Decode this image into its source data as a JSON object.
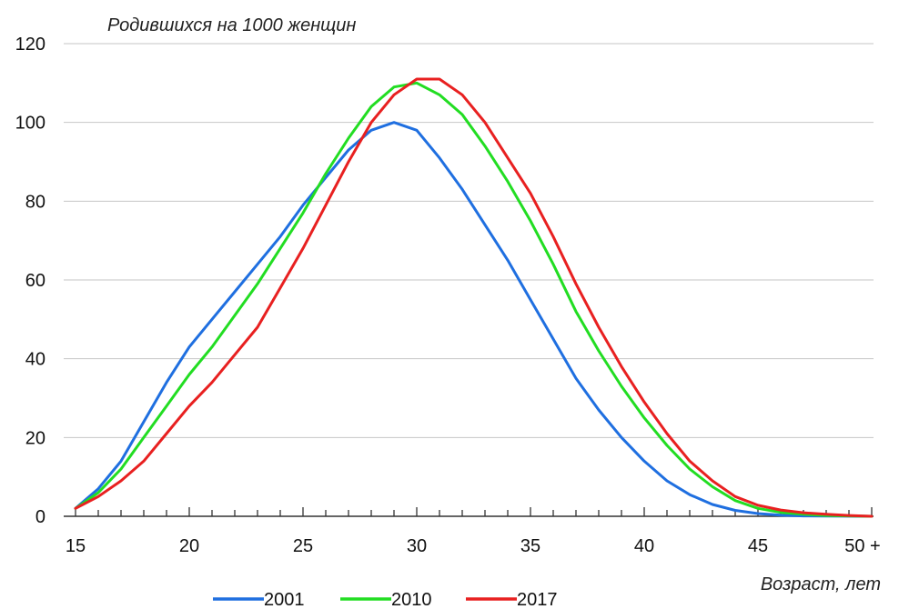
{
  "chart_data": {
    "type": "line",
    "ylabel": "Родившихся на 1000 женщин",
    "xlabel": "Возраст, лет",
    "xlim": [
      15,
      50
    ],
    "ylim": [
      0,
      120
    ],
    "grid": true,
    "legend_position": "bottom",
    "x_ticks": [
      {
        "value": 15,
        "label": "15"
      },
      {
        "value": 20,
        "label": "20"
      },
      {
        "value": 25,
        "label": "25"
      },
      {
        "value": 30,
        "label": "30"
      },
      {
        "value": 35,
        "label": "35"
      },
      {
        "value": 40,
        "label": "40"
      },
      {
        "value": 45,
        "label": "45"
      },
      {
        "value": 50,
        "label": "50 +"
      }
    ],
    "y_ticks": [
      0,
      20,
      40,
      60,
      80,
      100,
      120
    ],
    "x": [
      15,
      16,
      17,
      18,
      19,
      20,
      21,
      22,
      23,
      24,
      25,
      26,
      27,
      28,
      29,
      30,
      31,
      32,
      33,
      34,
      35,
      36,
      37,
      38,
      39,
      40,
      41,
      42,
      43,
      44,
      45,
      46,
      47,
      48,
      49,
      50
    ],
    "series": [
      {
        "name": "2001",
        "color": "#1f6fe0",
        "values": [
          2,
          7,
          14,
          24,
          34,
          43,
          50,
          57,
          64,
          71,
          79,
          86,
          93,
          98,
          100,
          98,
          91,
          83,
          74,
          65,
          55,
          45,
          35,
          27,
          20,
          14,
          9,
          5.5,
          3,
          1.5,
          0.7,
          0.3,
          0.1,
          0.05,
          0.02,
          0
        ]
      },
      {
        "name": "2010",
        "color": "#22dd22",
        "values": [
          2,
          6,
          12,
          20,
          28,
          36,
          43,
          51,
          59,
          68,
          77,
          87,
          96,
          104,
          109,
          110,
          107,
          102,
          94,
          85,
          75,
          64,
          52,
          42,
          33,
          25,
          18,
          12,
          7.5,
          4,
          2,
          1,
          0.5,
          0.2,
          0.1,
          0
        ]
      },
      {
        "name": "2017",
        "color": "#e82020",
        "values": [
          2,
          5,
          9,
          14,
          21,
          28,
          34,
          41,
          48,
          58,
          68,
          79,
          90,
          100,
          107,
          111,
          111,
          107,
          100,
          91,
          82,
          71,
          59,
          48,
          38,
          29,
          21,
          14,
          9,
          5,
          2.8,
          1.6,
          0.9,
          0.5,
          0.2,
          0
        ]
      }
    ]
  }
}
